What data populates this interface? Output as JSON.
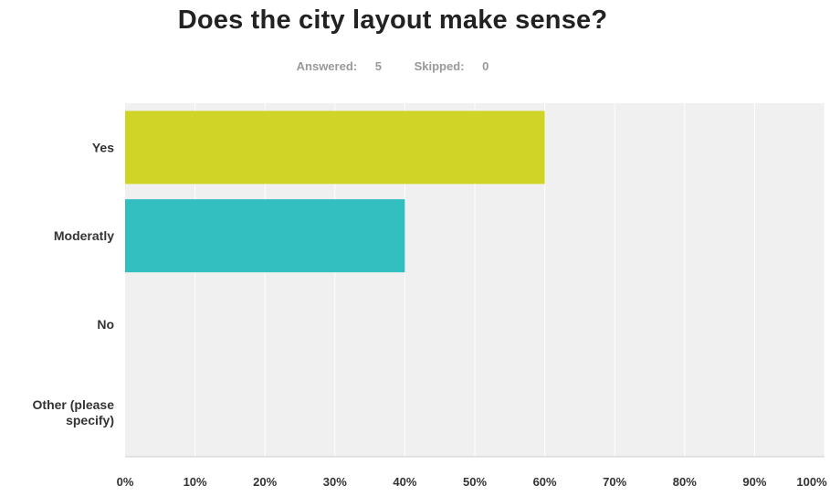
{
  "chart_data": {
    "type": "bar",
    "orientation": "horizontal",
    "title": "Does the city layout make sense?",
    "summary": {
      "answered_label": "Answered:",
      "answered": "5",
      "skipped_label": "Skipped:",
      "skipped": "0"
    },
    "categories": [
      [
        "Yes"
      ],
      [
        "Moderatly"
      ],
      [
        "No"
      ],
      [
        "Other (please",
        "specify)"
      ]
    ],
    "values": [
      60,
      40,
      0,
      0
    ],
    "colors": [
      "#cfd427",
      "#33bebf",
      "#8fa8cf",
      "#a6a6a6"
    ],
    "xlim": [
      0,
      100
    ],
    "xticks": [
      "0%",
      "10%",
      "20%",
      "30%",
      "40%",
      "50%",
      "60%",
      "70%",
      "80%",
      "90%",
      "100%"
    ],
    "grid": true,
    "legend": "none",
    "plot_background": "#f0f0f0",
    "gridline_color": "#ffffff"
  }
}
